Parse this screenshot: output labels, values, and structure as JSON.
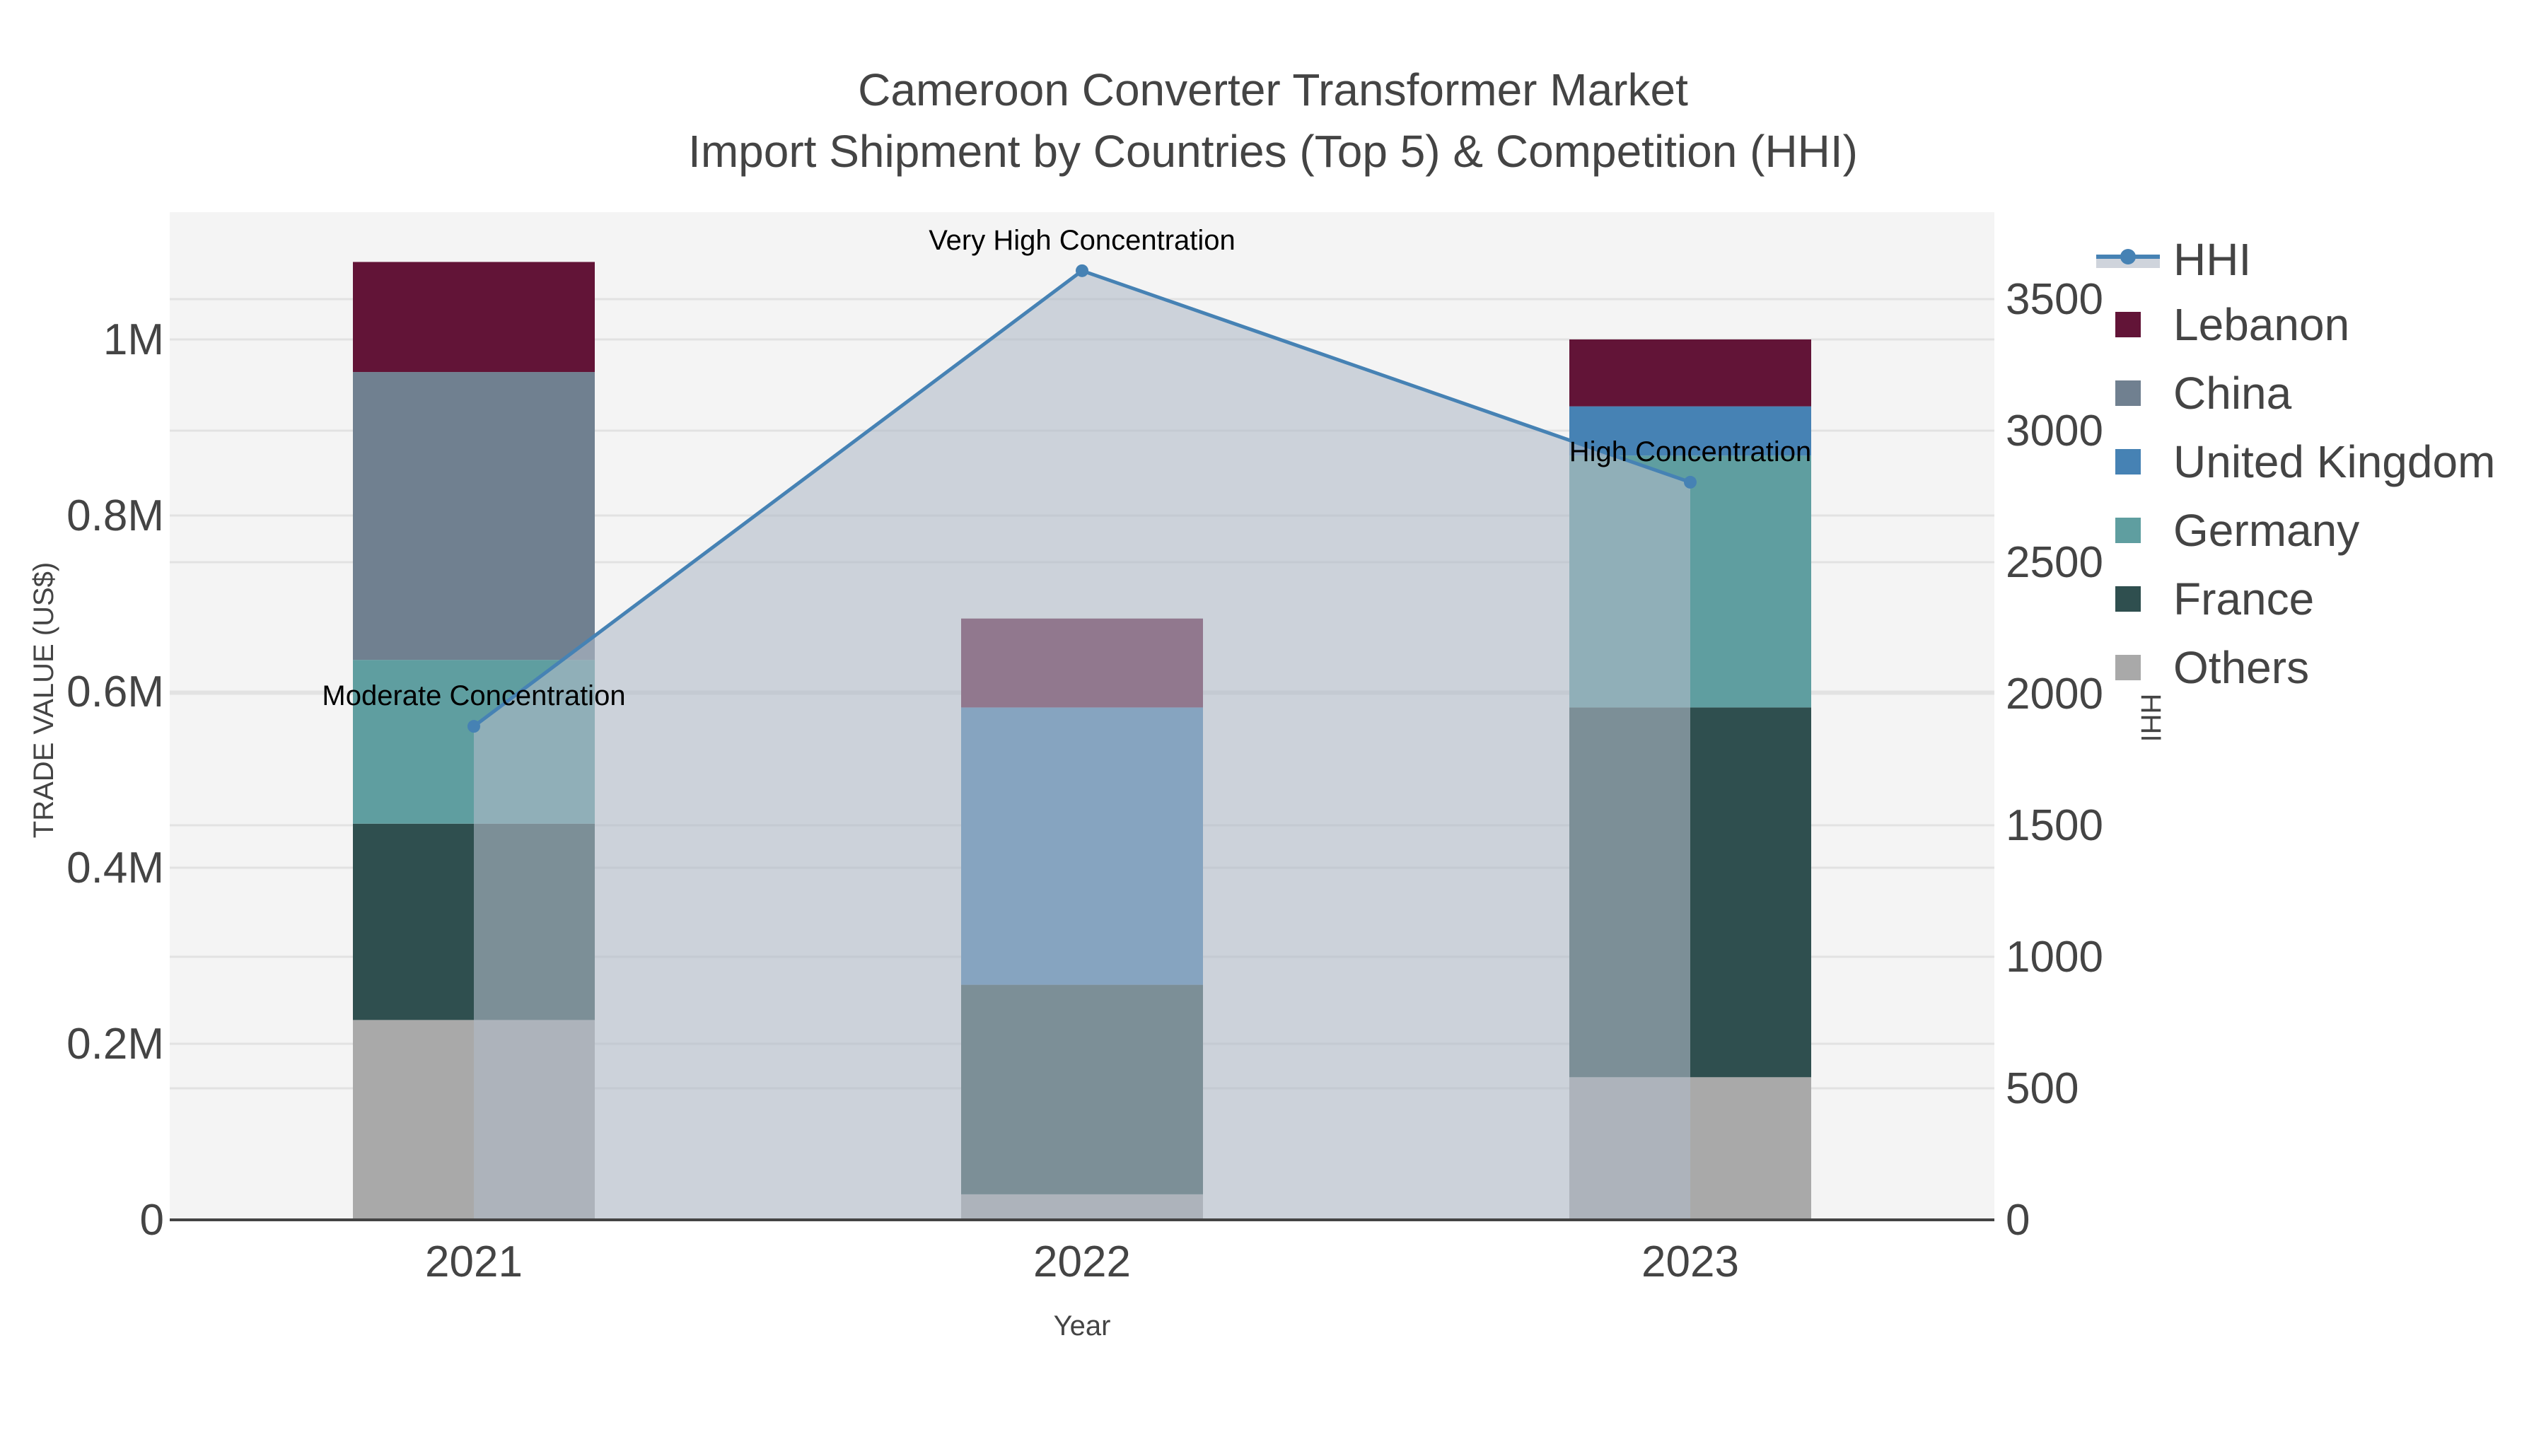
{
  "header": {
    "title_line1": "Cameroon Converter Transformer Market",
    "title_line2": "Import Shipment by Countries (Top 5) & Competition (HHI)"
  },
  "axes": {
    "x_title": "Year",
    "y_left_title": "TRADE VALUE (US$)",
    "y_right_title": "HHI",
    "x_ticks": [
      "2021",
      "2022",
      "2023"
    ],
    "y_left_ticks": [
      "0",
      "0.2M",
      "0.4M",
      "0.6M",
      "0.8M",
      "1M"
    ],
    "y_right_ticks": [
      "0",
      "500",
      "1000",
      "1500",
      "2000",
      "2500",
      "3000",
      "3500"
    ]
  },
  "legend": {
    "items": [
      {
        "label": "HHI",
        "type": "line",
        "color": "#4682b4"
      },
      {
        "label": "Lebanon",
        "type": "bar",
        "color": "#621437"
      },
      {
        "label": "China",
        "type": "bar",
        "color": "#708090"
      },
      {
        "label": "United Kingdom",
        "type": "bar",
        "color": "#4682b4"
      },
      {
        "label": "Germany",
        "type": "bar",
        "color": "#5f9ea0"
      },
      {
        "label": "France",
        "type": "bar",
        "color": "#2f4f4f"
      },
      {
        "label": "Others",
        "type": "bar",
        "color": "#a9a9a9"
      }
    ]
  },
  "annotations": [
    {
      "text": "Moderate Concentration",
      "year": "2021"
    },
    {
      "text": "Very High Concentration",
      "year": "2022"
    },
    {
      "text": "High Concentration",
      "year": "2023"
    }
  ],
  "colors": {
    "plot_bg": "#f4f4f4",
    "hhi_line": "#4682b4",
    "hhi_fill": "rgba(176,186,200,0.6)",
    "grid": "#e2e2e2",
    "text": "#444444"
  },
  "chart_data": {
    "type": "bar",
    "title": "Cameroon Converter Transformer Market — Import Shipment by Countries (Top 5) & Competition (HHI)",
    "xlabel": "Year",
    "ylabel": "TRADE VALUE (US$)",
    "y2label": "HHI",
    "categories": [
      "2021",
      "2022",
      "2023"
    ],
    "stacked": true,
    "ylim": [
      0,
      1146000
    ],
    "y2lim": [
      0,
      3830
    ],
    "grid": true,
    "legend_position": "right",
    "series": [
      {
        "name": "Others",
        "color": "#a9a9a9",
        "values": [
          227000,
          29000,
          162000
        ]
      },
      {
        "name": "France",
        "color": "#2f4f4f",
        "values": [
          223000,
          238000,
          420000
        ]
      },
      {
        "name": "Germany",
        "color": "#5f9ea0",
        "values": [
          186000,
          0,
          286000
        ]
      },
      {
        "name": "United Kingdom",
        "color": "#4682b4",
        "values": [
          0,
          315000,
          56000
        ]
      },
      {
        "name": "China",
        "color": "#708090",
        "values": [
          327000,
          0,
          0
        ]
      },
      {
        "name": "Lebanon",
        "color": "#621437",
        "values": [
          125000,
          101000,
          76000
        ]
      }
    ],
    "line_series": {
      "name": "HHI",
      "axis": "right",
      "type": "line+area",
      "values": [
        1876,
        3608,
        2804
      ],
      "labels": [
        "Moderate Concentration",
        "Very High Concentration",
        "High Concentration"
      ]
    }
  }
}
